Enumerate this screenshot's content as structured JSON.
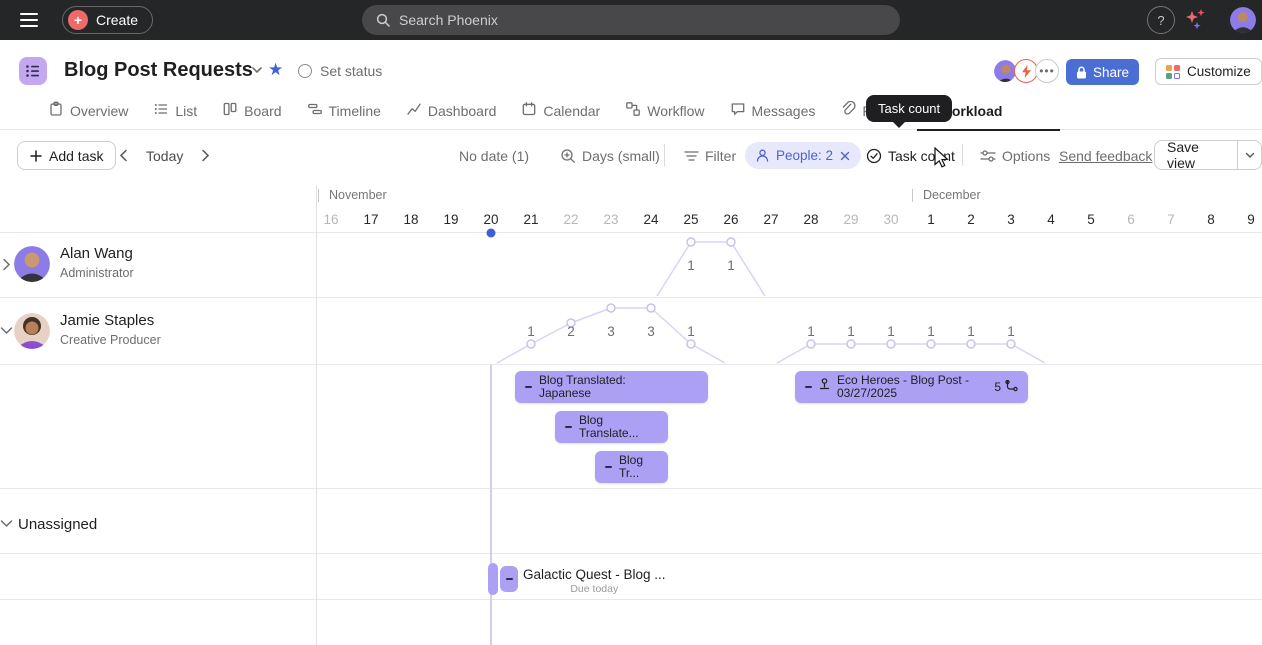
{
  "colors": {
    "accent_blue": "#4a6ed4",
    "task_bar_purple": "#aba0f4",
    "chart_line_purple": "#d9d3f4",
    "today_dot_blue": "#3e5fd7",
    "topbar_bg": "#252628",
    "create_plus_coral": "#f06a6a"
  },
  "topbar": {
    "create_label": "Create",
    "search_placeholder": "Search Phoenix",
    "help_label": "?"
  },
  "header": {
    "title": "Blog Post Requests",
    "set_status_label": "Set status",
    "share_label": "Share",
    "customize_label": "Customize"
  },
  "tabs": [
    {
      "label": "Overview",
      "icon": "overview-icon"
    },
    {
      "label": "List",
      "icon": "list-icon"
    },
    {
      "label": "Board",
      "icon": "board-icon"
    },
    {
      "label": "Timeline",
      "icon": "timeline-icon"
    },
    {
      "label": "Dashboard",
      "icon": "dashboard-icon"
    },
    {
      "label": "Calendar",
      "icon": "calendar-icon"
    },
    {
      "label": "Workflow",
      "icon": "workflow-icon"
    },
    {
      "label": "Messages",
      "icon": "messages-icon"
    },
    {
      "label": "Files",
      "icon": "files-icon"
    },
    {
      "label": "Workload",
      "icon": "workload-icon",
      "active": true
    }
  ],
  "tooltip": {
    "text": "Task count"
  },
  "toolbar": {
    "add_task_label": "Add task",
    "today_label": "Today",
    "no_date_label": "No date (1)",
    "zoom_label": "Days (small)",
    "filter_label": "Filter",
    "people_chip_label": "People: 2",
    "task_count_label": "Task count",
    "options_label": "Options",
    "send_feedback_label": "Send feedback",
    "save_view_label": "Save view"
  },
  "workload": {
    "months": [
      {
        "name": "November",
        "first_day_index": 0
      },
      {
        "name": "December",
        "first_day_index": 15
      }
    ],
    "days": [
      {
        "label": "16",
        "weekend": true
      },
      {
        "label": "17"
      },
      {
        "label": "18"
      },
      {
        "label": "19"
      },
      {
        "label": "20",
        "today": true
      },
      {
        "label": "21"
      },
      {
        "label": "22",
        "weekend": true
      },
      {
        "label": "23",
        "weekend": true
      },
      {
        "label": "24"
      },
      {
        "label": "25"
      },
      {
        "label": "26"
      },
      {
        "label": "27"
      },
      {
        "label": "28"
      },
      {
        "label": "29",
        "weekend": true
      },
      {
        "label": "30",
        "weekend": true
      },
      {
        "label": "1"
      },
      {
        "label": "2"
      },
      {
        "label": "3"
      },
      {
        "label": "4"
      },
      {
        "label": "5"
      },
      {
        "label": "6",
        "weekend": true
      },
      {
        "label": "7",
        "weekend": true
      },
      {
        "label": "8"
      },
      {
        "label": "9"
      }
    ],
    "today_index": 4,
    "people": [
      {
        "name": "Alan Wang",
        "role": "Administrator",
        "expanded": false,
        "task_counts": [
          {
            "day_index": 9,
            "value": 1
          },
          {
            "day_index": 10,
            "value": 1
          }
        ]
      },
      {
        "name": "Jamie Staples",
        "role": "Creative Producer",
        "expanded": true,
        "task_counts": [
          {
            "day_index": 5,
            "value": 1
          },
          {
            "day_index": 6,
            "value": 2
          },
          {
            "day_index": 7,
            "value": 3
          },
          {
            "day_index": 8,
            "value": 3
          },
          {
            "day_index": 9,
            "value": 1
          },
          {
            "day_index": 12,
            "value": 1
          },
          {
            "day_index": 13,
            "value": 1
          },
          {
            "day_index": 14,
            "value": 1
          },
          {
            "day_index": 15,
            "value": 1
          },
          {
            "day_index": 16,
            "value": 1
          },
          {
            "day_index": 17,
            "value": 1
          }
        ]
      }
    ],
    "tasks": [
      {
        "assignee": "Jamie Staples",
        "title_lines": [
          "Blog Translated:",
          "Japanese"
        ],
        "field_value": "-",
        "start_day_index": 5,
        "end_day_index": 9,
        "lane": 0
      },
      {
        "assignee": "Jamie Staples",
        "title_lines": [
          "Eco Heroes - Blog Post -",
          "03/27/2025"
        ],
        "field_value": "-",
        "start_day_index": 12,
        "end_day_index": 17,
        "lane": 0,
        "approval": true,
        "subtask_count": "5"
      },
      {
        "assignee": "Jamie Staples",
        "title_lines": [
          "Blog",
          "Translate..."
        ],
        "field_value": "-",
        "start_day_index": 6,
        "end_day_index": 8,
        "lane": 1
      },
      {
        "assignee": "Jamie Staples",
        "title_lines": [
          "Blog",
          "Tr..."
        ],
        "field_value": "-",
        "start_day_index": 7,
        "end_day_index": 8,
        "lane": 2
      }
    ],
    "unassigned_label": "Unassigned",
    "unassigned_task": {
      "title": "Galactic Quest - Blog ...",
      "subtitle": "Due today",
      "field_value": "-",
      "day_index": 4
    }
  }
}
